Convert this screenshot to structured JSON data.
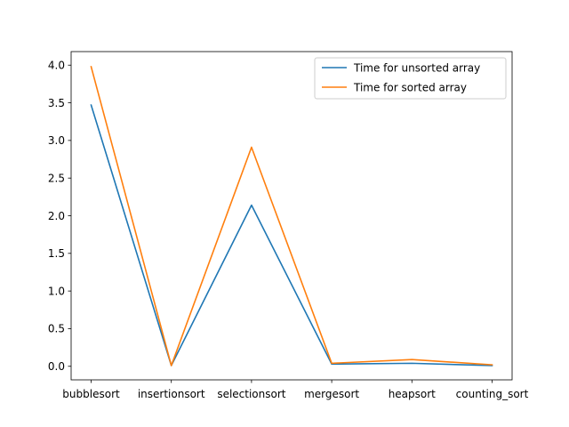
{
  "chart_data": {
    "type": "line",
    "categories": [
      "bubblesort",
      "insertionsort",
      "selectionsort",
      "mergesort",
      "heapsort",
      "counting_sort"
    ],
    "series": [
      {
        "name": "Time for unsorted array",
        "color": "#1f77b4",
        "values": [
          3.47,
          0.01,
          2.14,
          0.03,
          0.04,
          0.01
        ]
      },
      {
        "name": "Time for sorted array",
        "color": "#ff7f0e",
        "values": [
          3.98,
          0.01,
          2.91,
          0.04,
          0.09,
          0.02
        ]
      }
    ],
    "yticks": [
      "0.0",
      "0.5",
      "1.0",
      "1.5",
      "2.0",
      "2.5",
      "3.0",
      "3.5",
      "4.0"
    ],
    "ylim": [
      -0.18,
      4.18
    ],
    "legend_position": "top-right",
    "grid": false
  }
}
